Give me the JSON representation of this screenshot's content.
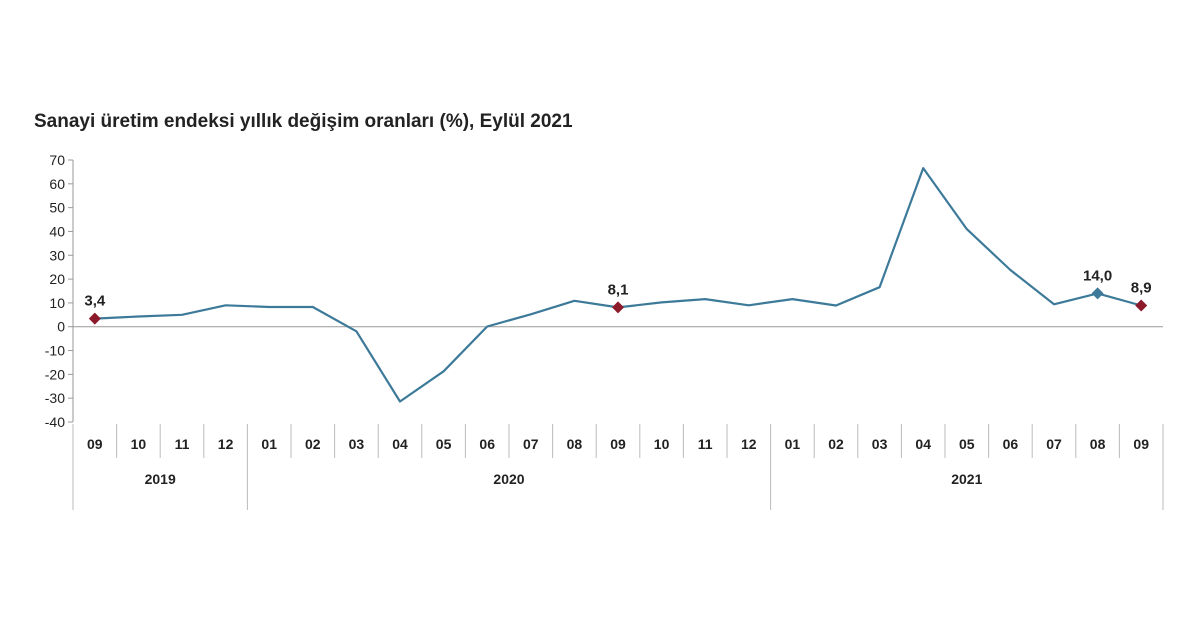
{
  "chart_data": {
    "type": "line",
    "title": "Sanayi üretim endeksi yıllık değişim oranları (%), Eylül 2021",
    "ylim": [
      -40,
      70
    ],
    "yticks": [
      70,
      60,
      50,
      40,
      30,
      20,
      10,
      0,
      -10,
      -20,
      -30,
      -40
    ],
    "grid": false,
    "categories": [
      "09",
      "10",
      "11",
      "12",
      "01",
      "02",
      "03",
      "04",
      "05",
      "06",
      "07",
      "08",
      "09",
      "10",
      "11",
      "12",
      "01",
      "02",
      "03",
      "04",
      "05",
      "06",
      "07",
      "08",
      "09"
    ],
    "year_groups": [
      {
        "label": "2019",
        "start": 0,
        "end": 3
      },
      {
        "label": "2020",
        "start": 4,
        "end": 15
      },
      {
        "label": "2021",
        "start": 16,
        "end": 24
      }
    ],
    "series": [
      {
        "color": "#3d7a9a",
        "values": [
          3.4,
          4.3,
          5.0,
          9.0,
          8.3,
          8.3,
          -1.9,
          -31.4,
          -18.7,
          0.1,
          5.2,
          10.9,
          8.1,
          10.2,
          11.6,
          9.0,
          11.6,
          8.9,
          16.6,
          66.6,
          41.0,
          23.8,
          9.4,
          14.0,
          8.9
        ]
      }
    ],
    "data_labels": [
      {
        "index": 0,
        "text": "3,4",
        "marker_color": "#8b1a2b"
      },
      {
        "index": 12,
        "text": "8,1",
        "marker_color": "#8b1a2b"
      },
      {
        "index": 23,
        "text": "14,0",
        "marker_color": "#3d7a9a"
      },
      {
        "index": 24,
        "text": "8,9",
        "marker_color": "#8b1a2b"
      }
    ]
  }
}
